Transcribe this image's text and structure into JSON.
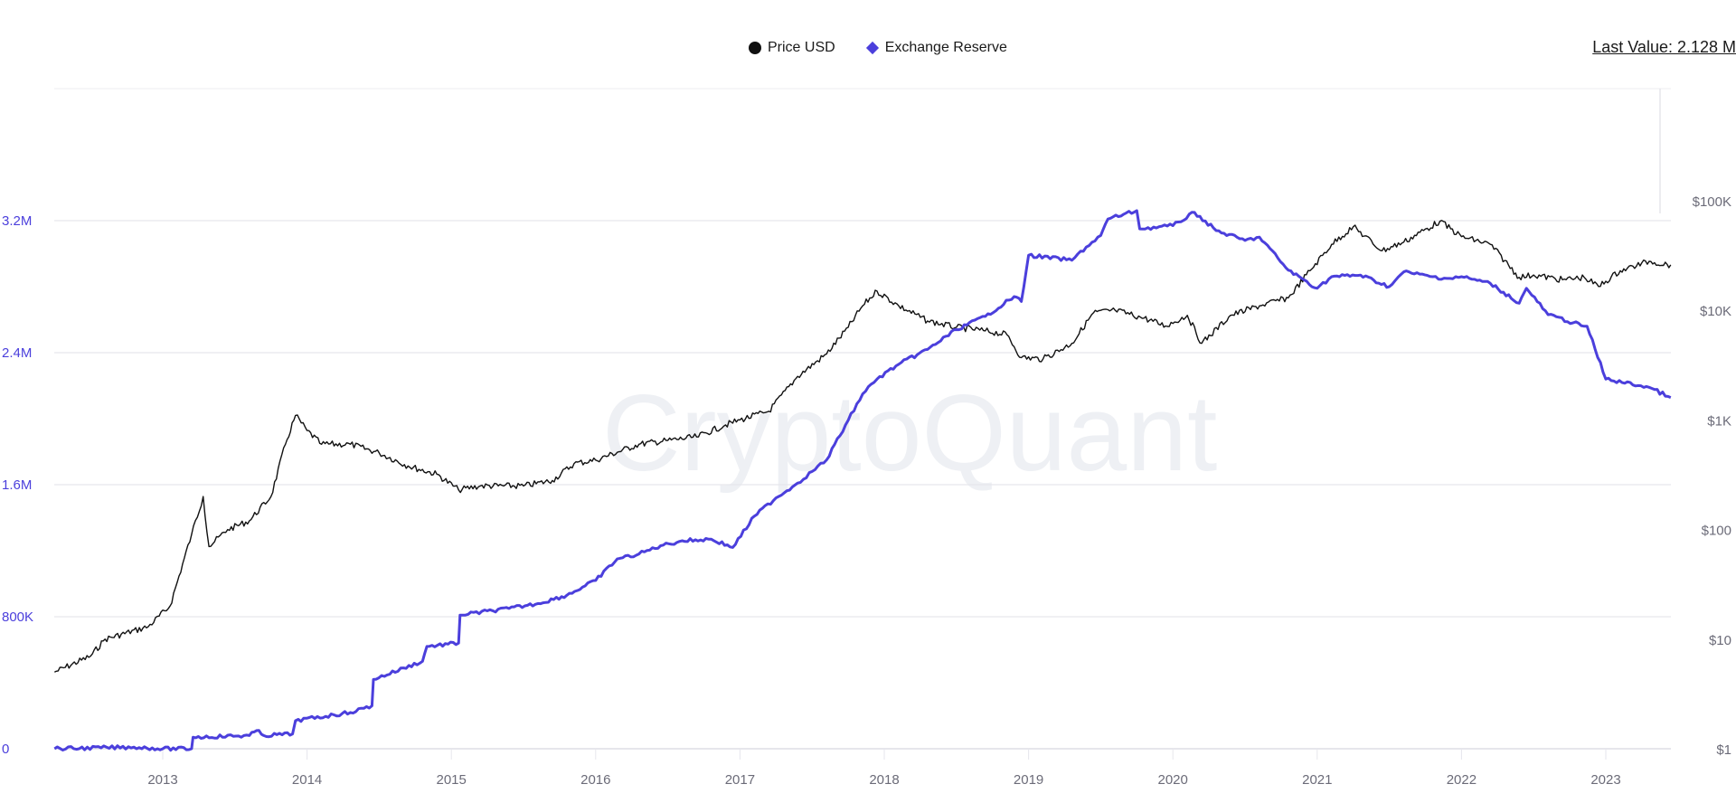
{
  "legend": {
    "items": [
      {
        "label": "Price USD",
        "marker": "circle",
        "color": "#111111"
      },
      {
        "label": "Exchange Reserve",
        "marker": "diamond",
        "color": "#4b3fdc"
      }
    ]
  },
  "last_value": "Last Value: 2.128 M",
  "watermark": "CryptoQuant",
  "colors": {
    "price": "#111111",
    "reserve": "#4b3fdc",
    "grid": "#e6e6ec",
    "left_axis": "#4b3fdc",
    "right_axis": "#6b6b78"
  },
  "chart_data": {
    "type": "line",
    "title": "",
    "xlabel": "",
    "ylabel_left": "Exchange Reserve",
    "ylabel_right": "Price USD",
    "x_ticks": [
      "2013",
      "2014",
      "2015",
      "2016",
      "2017",
      "2018",
      "2019",
      "2020",
      "2021",
      "2022",
      "2023"
    ],
    "left_ticks": [
      "0",
      "800K",
      "1.6M",
      "2.4M",
      "3.2M"
    ],
    "right_ticks": [
      "$1",
      "$10",
      "$100",
      "$1K",
      "$10K",
      "$100K"
    ],
    "ylim_left": [
      0,
      3200000
    ],
    "ylim_right_log": [
      1,
      100000
    ],
    "grid": true,
    "legend_position": "top-center",
    "series": [
      {
        "name": "Price USD",
        "axis": "right",
        "scale": "log",
        "x": [
          2012.25,
          2012.5,
          2012.6,
          2012.9,
          2013.05,
          2013.2,
          2013.28,
          2013.32,
          2013.45,
          2013.6,
          2013.75,
          2013.85,
          2013.92,
          2014.0,
          2014.1,
          2014.3,
          2014.5,
          2014.7,
          2014.9,
          2015.05,
          2015.2,
          2015.5,
          2015.7,
          2015.85,
          2016.0,
          2016.3,
          2016.5,
          2016.7,
          2016.9,
          2017.0,
          2017.2,
          2017.4,
          2017.6,
          2017.75,
          2017.85,
          2017.95,
          2018.1,
          2018.3,
          2018.5,
          2018.7,
          2018.85,
          2018.95,
          2019.1,
          2019.3,
          2019.45,
          2019.6,
          2019.8,
          2019.95,
          2020.1,
          2020.2,
          2020.4,
          2020.6,
          2020.8,
          2020.95,
          2021.1,
          2021.25,
          2021.45,
          2021.6,
          2021.85,
          2022.0,
          2022.2,
          2022.4,
          2022.5,
          2022.7,
          2022.85,
          2022.95,
          2023.1,
          2023.3,
          2023.45
        ],
        "y": [
          5,
          7,
          10,
          13,
          20,
          90,
          200,
          70,
          100,
          120,
          200,
          600,
          1100,
          800,
          600,
          600,
          500,
          380,
          320,
          230,
          250,
          250,
          280,
          400,
          430,
          600,
          650,
          700,
          900,
          1000,
          1200,
          2500,
          4000,
          7000,
          11000,
          15000,
          11000,
          8000,
          7000,
          6500,
          6000,
          3700,
          3600,
          5000,
          9500,
          10000,
          8500,
          7200,
          9000,
          5000,
          9000,
          11000,
          13000,
          23000,
          40000,
          58000,
          35000,
          42000,
          65000,
          47000,
          40000,
          20000,
          21000,
          19000,
          20000,
          16500,
          23000,
          28000,
          26000
        ]
      },
      {
        "name": "Exchange Reserve",
        "axis": "left",
        "x": [
          2012.25,
          2012.8,
          2013.0,
          2013.2,
          2013.21,
          2013.6,
          2013.65,
          2013.7,
          2013.9,
          2013.92,
          2014.3,
          2014.45,
          2014.46,
          2014.8,
          2014.83,
          2015.05,
          2015.06,
          2015.4,
          2015.6,
          2015.8,
          2016.0,
          2016.15,
          2016.3,
          2016.45,
          2016.6,
          2016.8,
          2016.95,
          2017.1,
          2017.25,
          2017.4,
          2017.5,
          2017.6,
          2017.75,
          2017.85,
          2017.95,
          2018.1,
          2018.3,
          2018.5,
          2018.7,
          2018.9,
          2018.95,
          2019.0,
          2019.3,
          2019.4,
          2019.5,
          2019.55,
          2019.75,
          2019.77,
          2020.0,
          2020.15,
          2020.3,
          2020.5,
          2020.6,
          2020.8,
          2021.0,
          2021.1,
          2021.3,
          2021.5,
          2021.6,
          2021.8,
          2021.9,
          2022.0,
          2022.2,
          2022.4,
          2022.45,
          2022.6,
          2022.85,
          2022.87,
          2023.0,
          2023.3,
          2023.45
        ],
        "y": [
          0,
          10000,
          0,
          0,
          70000,
          80000,
          110000,
          80000,
          90000,
          170000,
          220000,
          260000,
          420000,
          530000,
          620000,
          640000,
          810000,
          850000,
          880000,
          930000,
          1020000,
          1150000,
          1180000,
          1230000,
          1260000,
          1270000,
          1220000,
          1410000,
          1520000,
          1610000,
          1680000,
          1750000,
          1990000,
          2150000,
          2240000,
          2330000,
          2420000,
          2540000,
          2620000,
          2740000,
          2710000,
          2990000,
          2960000,
          3040000,
          3110000,
          3210000,
          3260000,
          3150000,
          3170000,
          3250000,
          3140000,
          3080000,
          3100000,
          2900000,
          2790000,
          2860000,
          2870000,
          2800000,
          2890000,
          2860000,
          2850000,
          2860000,
          2820000,
          2700000,
          2790000,
          2630000,
          2560000,
          2560000,
          2240000,
          2190000,
          2128000
        ]
      }
    ]
  }
}
